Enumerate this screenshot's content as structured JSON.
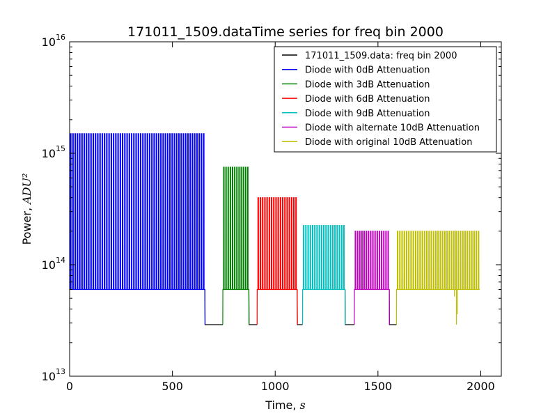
{
  "chart_data": {
    "type": "line",
    "title": "171011_1509.dataTime series for freq bin 2000",
    "xlabel": "Time, ",
    "xlabel_unit": "s",
    "ylabel": "Power, ",
    "ylabel_unit": "ADU²",
    "xlim": [
      0,
      2100
    ],
    "ylim": [
      10000000000000.0,
      1e+16
    ],
    "yscale": "log",
    "x_ticks": [
      0,
      500,
      1000,
      1500,
      2000
    ],
    "x_tick_labels": [
      "0",
      "500",
      "1000",
      "1500",
      "2000"
    ],
    "y_ticks": [
      10000000000000.0,
      100000000000000.0,
      1000000000000000.0,
      1e+16
    ],
    "y_tick_labels": [
      {
        "base": "10",
        "exp": "13"
      },
      {
        "base": "10",
        "exp": "14"
      },
      {
        "base": "10",
        "exp": "15"
      },
      {
        "base": "10",
        "exp": "16"
      }
    ],
    "legend_position": "top-right",
    "series": [
      {
        "name": "171011_1509.data: freq bin 2000",
        "color": "#000000",
        "segments": [
          [
            0,
            1995
          ]
        ],
        "baseline": 29000000000000.0
      },
      {
        "name": "Diode with 0dB Attenuation",
        "color": "#0000ff",
        "segments": [
          [
            0,
            658
          ]
        ],
        "baseline": 60000000000000.0,
        "peak": 1500000000000000.0,
        "pulses": 60
      },
      {
        "name": "Diode with 3dB Attenuation",
        "color": "#008000",
        "segments": [
          [
            745,
            872
          ]
        ],
        "baseline": 60000000000000.0,
        "peak": 750000000000000.0,
        "pulses": 12
      },
      {
        "name": "Diode with 6dB Attenuation",
        "color": "#ff0000",
        "segments": [
          [
            912,
            1107
          ]
        ],
        "baseline": 60000000000000.0,
        "peak": 400000000000000.0,
        "pulses": 18
      },
      {
        "name": "Diode with 9dB Attenuation",
        "color": "#00bfbf",
        "segments": [
          [
            1133,
            1340
          ]
        ],
        "baseline": 60000000000000.0,
        "peak": 225000000000000.0,
        "pulses": 19
      },
      {
        "name": "Diode with alternate 10dB Attenuation",
        "color": "#bf00bf",
        "segments": [
          [
            1385,
            1555
          ]
        ],
        "baseline": 60000000000000.0,
        "peak": 200000000000000.0,
        "pulses": 16
      },
      {
        "name": "Diode with original  10dB Attenuation",
        "color": "#bfbf00",
        "segments": [
          [
            1590,
            1995
          ]
        ],
        "baseline": 60000000000000.0,
        "peak": 200000000000000.0,
        "pulses": 37
      }
    ]
  }
}
